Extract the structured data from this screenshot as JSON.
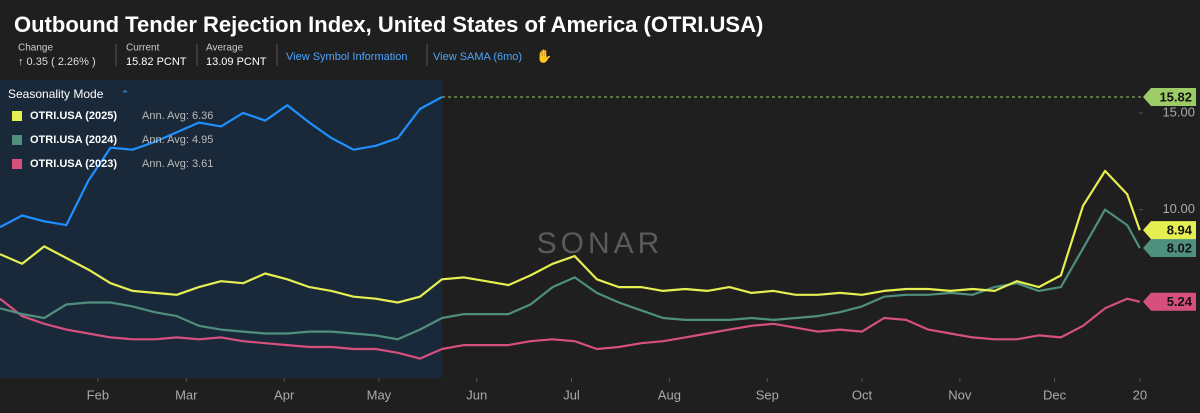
{
  "header": {
    "change_caption": "Change",
    "change_value": "↑ 0.35 ( 2.26% )",
    "current_caption": "Current",
    "current_value": "15.82 PCNT",
    "average_caption": "Average",
    "average_value": "13.09 PCNT",
    "link_symbol": "View Symbol Information",
    "link_sama": "View SAMA (6mo)"
  },
  "chart_data": {
    "type": "line",
    "title": "Outbound Tender Rejection Index, United States of America (OTRI.USA)",
    "legend_title": "Seasonality Mode",
    "watermark": "SONAR",
    "x": [
      0,
      7,
      14,
      21,
      28,
      35,
      42,
      49,
      56,
      63,
      70,
      77,
      84,
      91,
      98,
      105,
      112,
      119,
      126,
      133,
      140,
      147,
      154,
      161,
      168,
      175,
      182,
      189,
      196,
      203,
      210,
      217,
      224,
      231,
      238,
      245,
      252,
      259,
      266,
      273,
      280,
      287,
      294,
      301,
      308,
      315,
      322,
      329,
      336,
      343,
      350,
      357,
      361
    ],
    "xlim": [
      0,
      362
    ],
    "xticks": [
      {
        "value": 31,
        "label": "Feb"
      },
      {
        "value": 59,
        "label": "Mar"
      },
      {
        "value": 90,
        "label": "Apr"
      },
      {
        "value": 120,
        "label": "May"
      },
      {
        "value": 151,
        "label": "Jun"
      },
      {
        "value": 181,
        "label": "Jul"
      },
      {
        "value": 212,
        "label": "Aug"
      },
      {
        "value": 243,
        "label": "Sep"
      },
      {
        "value": 273,
        "label": "Oct"
      },
      {
        "value": 304,
        "label": "Nov"
      },
      {
        "value": 334,
        "label": "Dec"
      },
      {
        "value": 361,
        "label": "20"
      }
    ],
    "ylim": [
      1.3,
      16.7
    ],
    "yticks": [
      {
        "value": 10,
        "label": "10.00"
      },
      {
        "value": 15,
        "label": "15.00"
      }
    ],
    "series": [
      {
        "color": "#1e90ff",
        "label_color": "#9ccc65",
        "values": [
          9.1,
          9.7,
          9.4,
          9.2,
          11.5,
          13.2,
          13.1,
          13.5,
          14.0,
          14.5,
          14.3,
          15.0,
          14.6,
          15.4,
          14.5,
          13.7,
          13.1,
          13.3,
          13.7,
          15.2,
          15.82,
          null,
          null,
          null,
          null,
          null,
          null,
          null,
          null,
          null,
          null,
          null,
          null,
          null,
          null,
          null,
          null,
          null,
          null,
          null,
          null,
          null,
          null,
          null,
          null,
          null,
          null,
          null,
          null,
          null,
          null,
          null,
          null
        ]
      },
      {
        "name": "OTRI.USA (2025)",
        "annotation": "Ann. Avg: 6.36",
        "color": "#e6ef52",
        "values": [
          7.7,
          7.2,
          8.1,
          7.5,
          6.9,
          6.2,
          5.8,
          5.7,
          5.6,
          6.0,
          6.3,
          6.2,
          6.7,
          6.4,
          6.0,
          5.8,
          5.5,
          5.4,
          5.2,
          5.5,
          6.4,
          6.5,
          6.3,
          6.1,
          6.6,
          7.2,
          7.6,
          6.4,
          6.0,
          6.0,
          5.8,
          5.9,
          5.8,
          6.0,
          5.7,
          5.8,
          5.6,
          5.6,
          5.7,
          5.6,
          5.8,
          5.9,
          5.9,
          5.8,
          5.9,
          5.8,
          6.3,
          6.0,
          6.6,
          10.2,
          12.0,
          10.8,
          8.94
        ]
      },
      {
        "name": "OTRI.USA (2024)",
        "annotation": "Ann. Avg: 4.95",
        "color": "#4f8f7d",
        "values": [
          4.9,
          4.6,
          4.4,
          5.1,
          5.2,
          5.2,
          5.0,
          4.7,
          4.5,
          4.0,
          3.8,
          3.7,
          3.6,
          3.6,
          3.7,
          3.7,
          3.6,
          3.5,
          3.3,
          3.8,
          4.4,
          4.6,
          4.6,
          4.6,
          5.1,
          6.0,
          6.5,
          5.7,
          5.2,
          4.8,
          4.4,
          4.3,
          4.3,
          4.3,
          4.4,
          4.3,
          4.4,
          4.5,
          4.7,
          5.0,
          5.5,
          5.6,
          5.6,
          5.7,
          5.6,
          6.0,
          6.2,
          5.8,
          6.0,
          8.0,
          10.0,
          9.2,
          8.02
        ]
      },
      {
        "name": "OTRI.USA (2023)",
        "annotation": "Ann. Avg: 3.61",
        "color": "#d6507e",
        "values": [
          5.4,
          4.5,
          4.1,
          3.8,
          3.6,
          3.4,
          3.3,
          3.3,
          3.4,
          3.3,
          3.4,
          3.2,
          3.1,
          3.0,
          2.9,
          2.9,
          2.8,
          2.8,
          2.6,
          2.3,
          2.8,
          3.0,
          3.0,
          3.0,
          3.2,
          3.3,
          3.2,
          2.8,
          2.9,
          3.1,
          3.2,
          3.4,
          3.6,
          3.8,
          4.0,
          4.1,
          3.9,
          3.7,
          3.8,
          3.7,
          4.4,
          4.3,
          3.8,
          3.6,
          3.4,
          3.3,
          3.3,
          3.5,
          3.4,
          4.0,
          4.9,
          5.4,
          5.24
        ]
      }
    ]
  }
}
